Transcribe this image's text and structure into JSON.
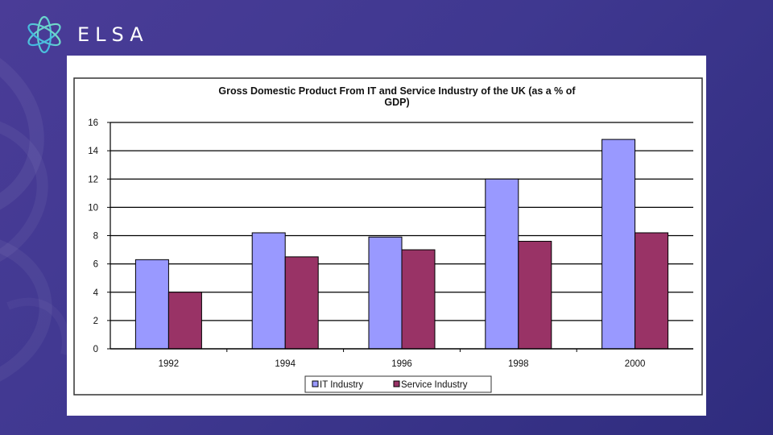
{
  "brand": {
    "name": "ELSA"
  },
  "colors": {
    "it": "#9999ff",
    "service": "#993366",
    "background": "#40398f"
  },
  "chart_data": {
    "type": "bar",
    "title_line1": "Gross Domestic Product From IT and Service Industry of the UK (as a % of",
    "title_line2": "GDP)",
    "categories": [
      "1992",
      "1994",
      "1996",
      "1998",
      "2000"
    ],
    "series": [
      {
        "name": "IT Industry",
        "values": [
          6.3,
          8.2,
          7.9,
          12.0,
          14.8
        ]
      },
      {
        "name": "Service Industry",
        "values": [
          4.0,
          6.5,
          7.0,
          7.6,
          8.2
        ]
      }
    ],
    "yticks": [
      "0",
      "2",
      "4",
      "6",
      "8",
      "10",
      "12",
      "14",
      "16"
    ],
    "ylim": [
      0,
      16
    ],
    "grid": true,
    "legend_position": "bottom-center"
  }
}
